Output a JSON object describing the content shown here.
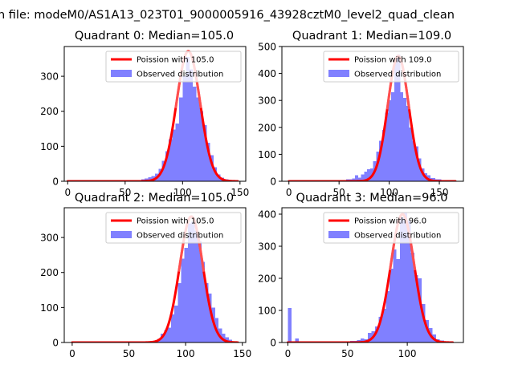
{
  "figure": {
    "suptitle": "n file: modeM0/AS1A13_023T01_9000005916_43928cztM0_level2_quad_clean"
  },
  "colors": {
    "hist": "#8080ff",
    "poisson": "#ff0000",
    "poisson_peak": "#ff9090",
    "axes": "#000000"
  },
  "legend": {
    "poisson_prefix": "Poission with ",
    "observed": "Observed distribution"
  },
  "chart_data": [
    {
      "type": "bar",
      "title": "Quadrant 0: Median=105.0",
      "median": 105.0,
      "poisson_label": "Poission with 105.0",
      "observed_label": "Observed distribution",
      "xlim": [
        -3,
        155
      ],
      "ylim": [
        0,
        385
      ],
      "xticks": [
        "0",
        "50",
        "100",
        "150"
      ],
      "xtick_values": [
        0,
        50,
        100,
        150
      ],
      "yticks": [
        "0",
        "100",
        "200",
        "300"
      ],
      "ytick_values": [
        0,
        100,
        200,
        300
      ],
      "bins": [
        {
          "x0": 0,
          "x1": 64,
          "y": 3
        },
        {
          "x0": 64,
          "x1": 67,
          "y": 6
        },
        {
          "x0": 67,
          "x1": 70,
          "y": 8
        },
        {
          "x0": 70,
          "x1": 73,
          "y": 12
        },
        {
          "x0": 73,
          "x1": 76,
          "y": 15
        },
        {
          "x0": 76,
          "x1": 79,
          "y": 22
        },
        {
          "x0": 79,
          "x1": 82,
          "y": 35
        },
        {
          "x0": 82,
          "x1": 85,
          "y": 58
        },
        {
          "x0": 85,
          "x1": 88,
          "y": 86
        },
        {
          "x0": 88,
          "x1": 91,
          "y": 120
        },
        {
          "x0": 91,
          "x1": 94,
          "y": 148
        },
        {
          "x0": 94,
          "x1": 97,
          "y": 165
        },
        {
          "x0": 97,
          "x1": 100,
          "y": 240
        },
        {
          "x0": 100,
          "x1": 103,
          "y": 300
        },
        {
          "x0": 103,
          "x1": 106,
          "y": 355
        },
        {
          "x0": 106,
          "x1": 109,
          "y": 320
        },
        {
          "x0": 109,
          "x1": 112,
          "y": 270
        },
        {
          "x0": 112,
          "x1": 115,
          "y": 240
        },
        {
          "x0": 115,
          "x1": 118,
          "y": 200
        },
        {
          "x0": 118,
          "x1": 121,
          "y": 160
        },
        {
          "x0": 121,
          "x1": 124,
          "y": 110
        },
        {
          "x0": 124,
          "x1": 127,
          "y": 75
        },
        {
          "x0": 127,
          "x1": 130,
          "y": 40
        },
        {
          "x0": 130,
          "x1": 133,
          "y": 20
        },
        {
          "x0": 133,
          "x1": 136,
          "y": 10
        },
        {
          "x0": 136,
          "x1": 140,
          "y": 6
        },
        {
          "x0": 140,
          "x1": 148,
          "y": 3
        }
      ],
      "poisson": {
        "mean": 105.0,
        "peak": 372,
        "x_from": 0,
        "x_to": 148
      }
    },
    {
      "type": "bar",
      "title": "Quadrant 1: Median=109.0",
      "median": 109.0,
      "poisson_label": "Poission with 109.0",
      "observed_label": "Observed distribution",
      "xlim": [
        -7,
        174
      ],
      "ylim": [
        0,
        500
      ],
      "xticks": [
        "0",
        "50",
        "100",
        "150"
      ],
      "xtick_values": [
        0,
        50,
        100,
        150
      ],
      "yticks": [
        "0",
        "100",
        "200",
        "300",
        "400",
        "500"
      ],
      "ytick_values": [
        0,
        100,
        200,
        300,
        400,
        500
      ],
      "bins": [
        {
          "x0": 0,
          "x1": 57,
          "y": 3
        },
        {
          "x0": 57,
          "x1": 63,
          "y": 8
        },
        {
          "x0": 63,
          "x1": 66,
          "y": 10
        },
        {
          "x0": 66,
          "x1": 69,
          "y": 22
        },
        {
          "x0": 69,
          "x1": 72,
          "y": 14
        },
        {
          "x0": 72,
          "x1": 75,
          "y": 25
        },
        {
          "x0": 75,
          "x1": 78,
          "y": 35
        },
        {
          "x0": 78,
          "x1": 81,
          "y": 45
        },
        {
          "x0": 81,
          "x1": 84,
          "y": 48
        },
        {
          "x0": 84,
          "x1": 87,
          "y": 75
        },
        {
          "x0": 87,
          "x1": 90,
          "y": 110
        },
        {
          "x0": 90,
          "x1": 93,
          "y": 150
        },
        {
          "x0": 93,
          "x1": 96,
          "y": 190
        },
        {
          "x0": 96,
          "x1": 99,
          "y": 255
        },
        {
          "x0": 99,
          "x1": 102,
          "y": 300
        },
        {
          "x0": 102,
          "x1": 105,
          "y": 330
        },
        {
          "x0": 105,
          "x1": 108,
          "y": 440
        },
        {
          "x0": 108,
          "x1": 111,
          "y": 470
        },
        {
          "x0": 111,
          "x1": 114,
          "y": 330
        },
        {
          "x0": 114,
          "x1": 117,
          "y": 310
        },
        {
          "x0": 117,
          "x1": 120,
          "y": 280
        },
        {
          "x0": 120,
          "x1": 123,
          "y": 200
        },
        {
          "x0": 123,
          "x1": 126,
          "y": 150
        },
        {
          "x0": 126,
          "x1": 129,
          "y": 130
        },
        {
          "x0": 129,
          "x1": 132,
          "y": 85
        },
        {
          "x0": 132,
          "x1": 135,
          "y": 48
        },
        {
          "x0": 135,
          "x1": 138,
          "y": 30
        },
        {
          "x0": 138,
          "x1": 141,
          "y": 22
        },
        {
          "x0": 141,
          "x1": 146,
          "y": 12
        },
        {
          "x0": 146,
          "x1": 152,
          "y": 8
        },
        {
          "x0": 152,
          "x1": 166,
          "y": 4
        }
      ],
      "poisson": {
        "mean": 109.0,
        "peak": 465,
        "x_from": 0,
        "x_to": 166
      }
    },
    {
      "type": "bar",
      "title": "Quadrant 2: Median=105.0",
      "median": 105.0,
      "poisson_label": "Poission with 105.0",
      "observed_label": "Observed distribution",
      "xlim": [
        -7,
        153
      ],
      "ylim": [
        0,
        385
      ],
      "xticks": [
        "0",
        "50",
        "100",
        "150"
      ],
      "xtick_values": [
        0,
        50,
        100,
        150
      ],
      "yticks": [
        "0",
        "100",
        "200",
        "300"
      ],
      "ytick_values": [
        0,
        100,
        200,
        300
      ],
      "bins": [
        {
          "x0": 0,
          "x1": 72,
          "y": 3
        },
        {
          "x0": 72,
          "x1": 75,
          "y": 6
        },
        {
          "x0": 75,
          "x1": 78,
          "y": 10
        },
        {
          "x0": 78,
          "x1": 81,
          "y": 25
        },
        {
          "x0": 81,
          "x1": 84,
          "y": 35
        },
        {
          "x0": 84,
          "x1": 87,
          "y": 42
        },
        {
          "x0": 87,
          "x1": 90,
          "y": 80
        },
        {
          "x0": 90,
          "x1": 93,
          "y": 105
        },
        {
          "x0": 93,
          "x1": 96,
          "y": 170
        },
        {
          "x0": 96,
          "x1": 99,
          "y": 240
        },
        {
          "x0": 99,
          "x1": 102,
          "y": 270
        },
        {
          "x0": 102,
          "x1": 105,
          "y": 340
        },
        {
          "x0": 105,
          "x1": 108,
          "y": 345
        },
        {
          "x0": 108,
          "x1": 111,
          "y": 320
        },
        {
          "x0": 111,
          "x1": 114,
          "y": 290
        },
        {
          "x0": 114,
          "x1": 117,
          "y": 230
        },
        {
          "x0": 117,
          "x1": 120,
          "y": 170
        },
        {
          "x0": 120,
          "x1": 123,
          "y": 140
        },
        {
          "x0": 123,
          "x1": 126,
          "y": 100
        },
        {
          "x0": 126,
          "x1": 129,
          "y": 70
        },
        {
          "x0": 129,
          "x1": 132,
          "y": 40
        },
        {
          "x0": 132,
          "x1": 135,
          "y": 25
        },
        {
          "x0": 135,
          "x1": 138,
          "y": 15
        },
        {
          "x0": 138,
          "x1": 141,
          "y": 8
        },
        {
          "x0": 141,
          "x1": 146,
          "y": 4
        }
      ],
      "poisson": {
        "mean": 105.0,
        "peak": 360,
        "x_from": 0,
        "x_to": 146
      }
    },
    {
      "type": "bar",
      "title": "Quadrant 3: Median=96.0",
      "median": 96.0,
      "poisson_label": "Poission with 96.0",
      "observed_label": "Observed distribution",
      "xlim": [
        -5,
        147
      ],
      "ylim": [
        0,
        420
      ],
      "xticks": [
        "0",
        "50",
        "100"
      ],
      "xtick_values": [
        0,
        50,
        100
      ],
      "yticks": [
        "0",
        "100",
        "200",
        "300",
        "400"
      ],
      "ytick_values": [
        0,
        100,
        200,
        300,
        400
      ],
      "bins": [
        {
          "x0": 0,
          "x1": 3,
          "y": 107
        },
        {
          "x0": 3,
          "x1": 6,
          "y": 3
        },
        {
          "x0": 6,
          "x1": 9,
          "y": 12
        },
        {
          "x0": 9,
          "x1": 52,
          "y": 3
        },
        {
          "x0": 52,
          "x1": 58,
          "y": 5
        },
        {
          "x0": 58,
          "x1": 61,
          "y": 8
        },
        {
          "x0": 61,
          "x1": 64,
          "y": 12
        },
        {
          "x0": 64,
          "x1": 67,
          "y": 10
        },
        {
          "x0": 67,
          "x1": 70,
          "y": 30
        },
        {
          "x0": 70,
          "x1": 73,
          "y": 35
        },
        {
          "x0": 73,
          "x1": 76,
          "y": 50
        },
        {
          "x0": 76,
          "x1": 79,
          "y": 80
        },
        {
          "x0": 79,
          "x1": 82,
          "y": 105
        },
        {
          "x0": 82,
          "x1": 85,
          "y": 160
        },
        {
          "x0": 85,
          "x1": 88,
          "y": 230
        },
        {
          "x0": 88,
          "x1": 91,
          "y": 290
        },
        {
          "x0": 91,
          "x1": 94,
          "y": 260
        },
        {
          "x0": 94,
          "x1": 97,
          "y": 390
        },
        {
          "x0": 97,
          "x1": 100,
          "y": 405
        },
        {
          "x0": 100,
          "x1": 103,
          "y": 380
        },
        {
          "x0": 103,
          "x1": 106,
          "y": 280
        },
        {
          "x0": 106,
          "x1": 109,
          "y": 210
        },
        {
          "x0": 109,
          "x1": 112,
          "y": 200
        },
        {
          "x0": 112,
          "x1": 115,
          "y": 120
        },
        {
          "x0": 115,
          "x1": 118,
          "y": 70
        },
        {
          "x0": 118,
          "x1": 121,
          "y": 45
        },
        {
          "x0": 121,
          "x1": 124,
          "y": 25
        },
        {
          "x0": 124,
          "x1": 127,
          "y": 10
        },
        {
          "x0": 127,
          "x1": 131,
          "y": 6
        },
        {
          "x0": 131,
          "x1": 138,
          "y": 3
        }
      ],
      "poisson": {
        "mean": 96.0,
        "peak": 400,
        "x_from": 0,
        "x_to": 138
      }
    }
  ]
}
